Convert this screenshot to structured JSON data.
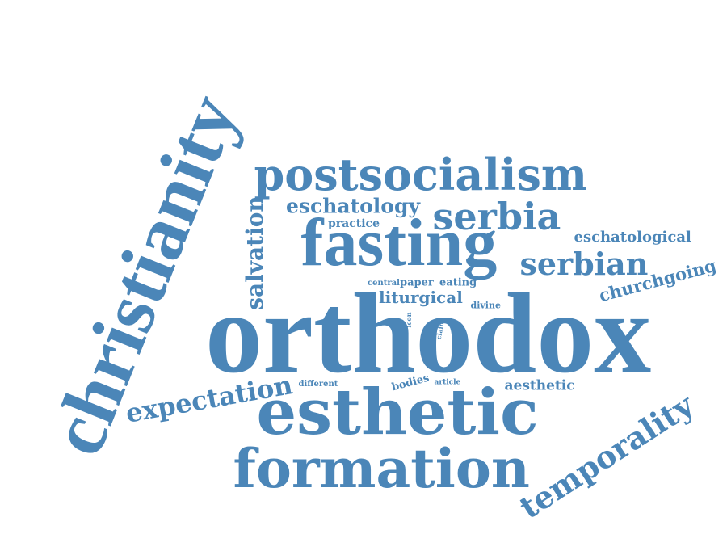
{
  "color": "#4b86b8",
  "words": [
    {
      "id": "christianity",
      "text": "christianity"
    },
    {
      "id": "orthodox",
      "text": "orthodox"
    },
    {
      "id": "fasting",
      "text": "fasting"
    },
    {
      "id": "postsocialism",
      "text": "postsocialism"
    },
    {
      "id": "esthetic",
      "text": "esthetic"
    },
    {
      "id": "formation",
      "text": "formation"
    },
    {
      "id": "serbia",
      "text": "serbia"
    },
    {
      "id": "serbian",
      "text": "serbian"
    },
    {
      "id": "temporality",
      "text": "temporality"
    },
    {
      "id": "expectation",
      "text": "expectation"
    },
    {
      "id": "salvation",
      "text": "salvation"
    },
    {
      "id": "eschatology",
      "text": "eschatology"
    },
    {
      "id": "churchgoing",
      "text": "churchgoing"
    },
    {
      "id": "eschatological",
      "text": "eschatological"
    },
    {
      "id": "liturgical",
      "text": "liturgical"
    },
    {
      "id": "aesthetic",
      "text": "aesthetic"
    },
    {
      "id": "practice",
      "text": "practice"
    },
    {
      "id": "paper",
      "text": "paper"
    },
    {
      "id": "eating",
      "text": "eating"
    },
    {
      "id": "central",
      "text": "central"
    },
    {
      "id": "divine",
      "text": "divine"
    },
    {
      "id": "bodies",
      "text": "bodies"
    },
    {
      "id": "different",
      "text": "different"
    },
    {
      "id": "article",
      "text": "article"
    },
    {
      "id": "icon",
      "text": "icon"
    },
    {
      "id": "claim",
      "text": "claim"
    }
  ]
}
